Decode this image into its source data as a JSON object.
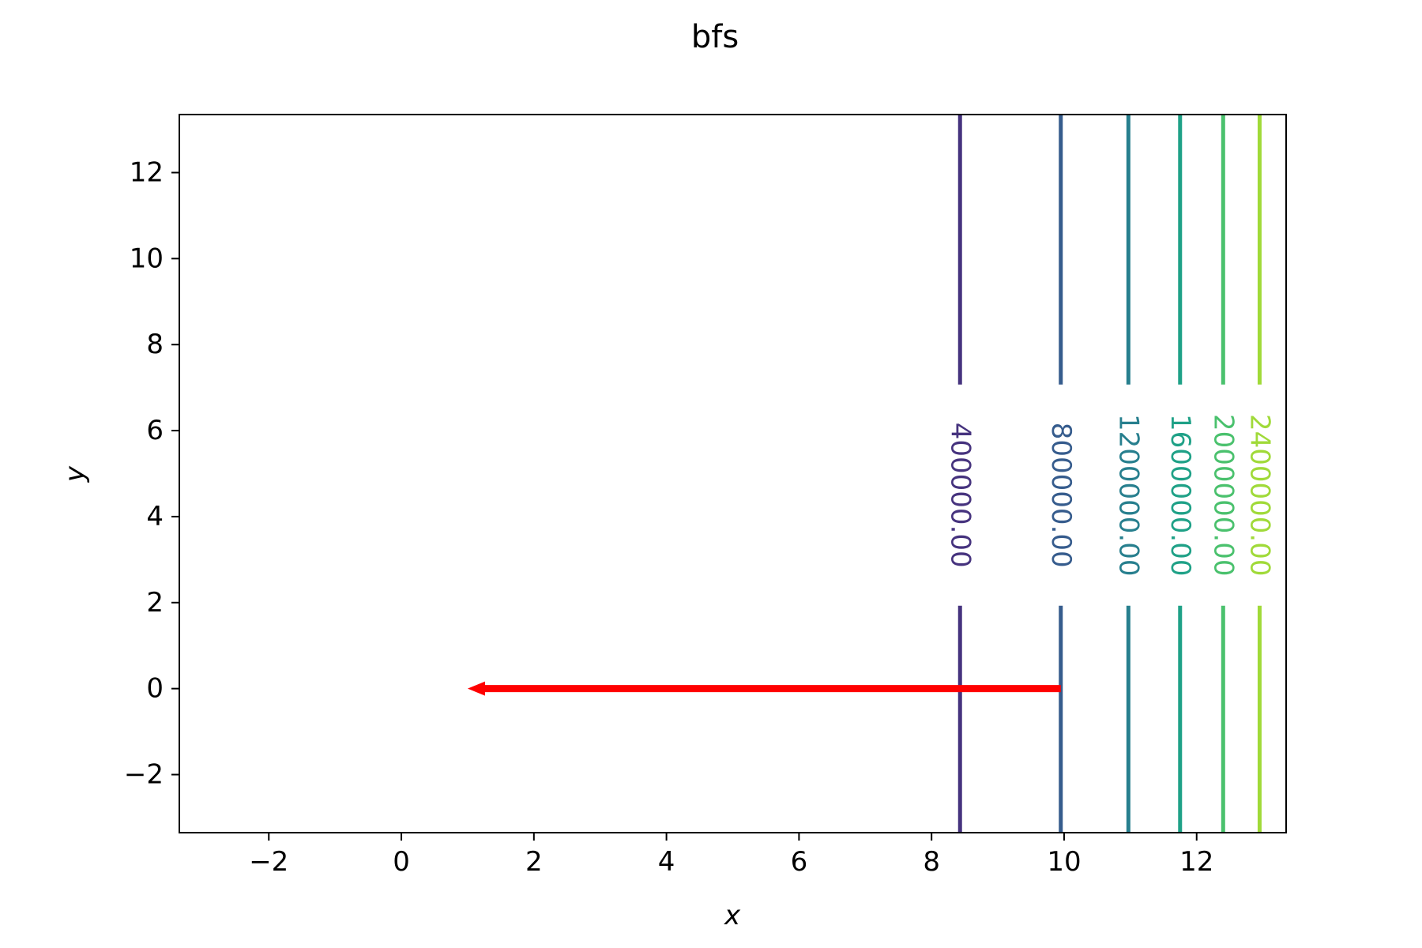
{
  "chart_data": {
    "type": "contour",
    "title": "bfs",
    "xlabel": "x",
    "ylabel": "y",
    "xlim": [
      -3.35,
      13.35
    ],
    "ylim": [
      -3.35,
      13.35
    ],
    "xticks": [
      -2,
      0,
      2,
      4,
      6,
      8,
      10,
      12
    ],
    "yticks": [
      -2,
      0,
      2,
      4,
      6,
      8,
      10,
      12
    ],
    "xtick_labels": [
      "−2",
      "0",
      "2",
      "4",
      "6",
      "8",
      "10",
      "12"
    ],
    "ytick_labels": [
      "−2",
      "0",
      "2",
      "4",
      "6",
      "8",
      "10",
      "12"
    ],
    "grid": false,
    "contours": [
      {
        "level_label": "400000.00",
        "x": 8.43,
        "color": "#46337e",
        "label_y": 4.5
      },
      {
        "level_label": "800000.00",
        "x": 9.95,
        "color": "#365c8d",
        "label_y": 4.5
      },
      {
        "level_label": "1200000.00",
        "x": 10.97,
        "color": "#277f8e",
        "label_y": 4.5
      },
      {
        "level_label": "1600000.00",
        "x": 11.75,
        "color": "#1fa187",
        "label_y": 4.5
      },
      {
        "level_label": "2000000.00",
        "x": 12.4,
        "color": "#4ac16d",
        "label_y": 4.5
      },
      {
        "level_label": "2400000.00",
        "x": 12.95,
        "color": "#a0da39",
        "label_y": 4.5
      }
    ],
    "arrow": {
      "from": [
        9.95,
        0
      ],
      "to": [
        1.0,
        0
      ],
      "color": "#ff0000"
    }
  }
}
